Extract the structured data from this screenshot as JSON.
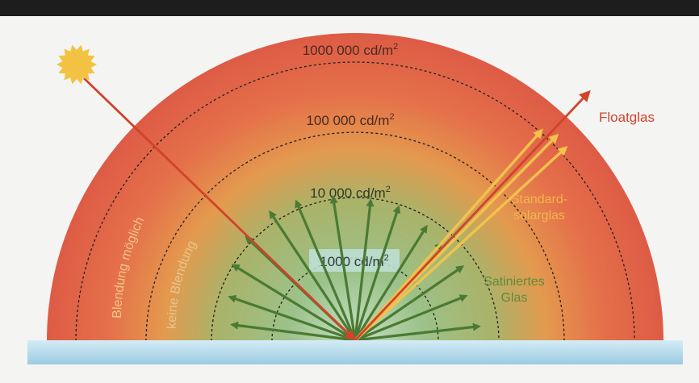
{
  "zones": [
    {
      "label": "1000 000 cd/m",
      "sup": "2"
    },
    {
      "label": "100 000 cd/m",
      "sup": "2"
    },
    {
      "label": "10 000 cd/m",
      "sup": "2"
    },
    {
      "label": "1000 cd/m",
      "sup": "2"
    }
  ],
  "side_labels": {
    "glare_possible": "Blendung möglich",
    "no_glare": "keine Blendung"
  },
  "materials": {
    "float": "Floatglas",
    "standard_line1": "Standard-",
    "standard_line2": "solarglas",
    "satin_line1": "Satiniertes",
    "satin_line2": "Glas"
  },
  "colors": {
    "outer": "#de5a44",
    "middle": "#e9894a",
    "inner": "#8fb878",
    "center": "#c8e2c6",
    "green_arrow": "#4a7a34",
    "yellow_arrow": "#f2c24d",
    "red_arrow": "#d1432a",
    "float_text": "#d1432a",
    "standard_text": "#f3b44e",
    "satin_text": "#5f8a3c",
    "ground": "#b3d9ec",
    "sun": "#f4c243",
    "top_bar": "#1d1d1d"
  },
  "icons": [
    "sun-icon"
  ]
}
